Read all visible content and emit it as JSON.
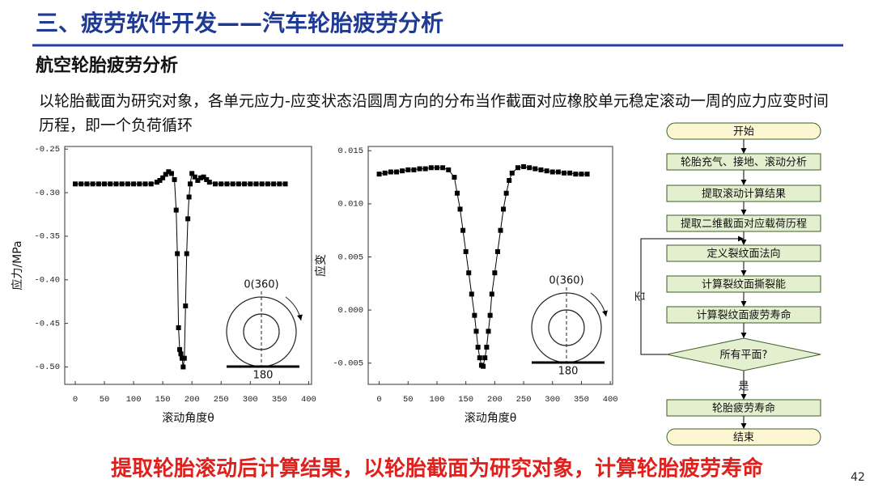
{
  "header": {
    "title": "三、疲劳软件开发——汽车轮胎疲劳分析",
    "subtitle": "航空轮胎疲劳分析",
    "description": "以轮胎截面为研究对象，各单元应力-应变状态沿圆周方向的分布当作截面对应橡胶单元稳定滚动一周的应力应变时间历程，即一个负荷循环"
  },
  "chart_data": [
    {
      "type": "line",
      "marker": "square",
      "color": "#000000",
      "xlabel": "滚动角度θ",
      "ylabel": "应力/MPa",
      "annotations": [
        "0(360)",
        "180"
      ],
      "x": [
        0,
        10,
        20,
        30,
        40,
        50,
        60,
        70,
        80,
        90,
        100,
        110,
        120,
        130,
        140,
        145,
        150,
        155,
        160,
        165,
        170,
        173,
        175,
        177,
        179,
        181,
        183,
        185,
        187,
        189,
        191,
        193,
        195,
        197,
        200,
        205,
        210,
        215,
        220,
        225,
        230,
        240,
        250,
        260,
        270,
        280,
        290,
        300,
        310,
        320,
        330,
        340,
        350,
        360
      ],
      "values": [
        -0.29,
        -0.29,
        -0.29,
        -0.29,
        -0.29,
        -0.29,
        -0.29,
        -0.29,
        -0.29,
        -0.29,
        -0.29,
        -0.29,
        -0.29,
        -0.29,
        -0.288,
        -0.286,
        -0.283,
        -0.279,
        -0.276,
        -0.278,
        -0.285,
        -0.32,
        -0.37,
        -0.455,
        -0.48,
        -0.485,
        -0.49,
        -0.5,
        -0.49,
        -0.43,
        -0.37,
        -0.33,
        -0.305,
        -0.29,
        -0.278,
        -0.282,
        -0.286,
        -0.283,
        -0.282,
        -0.285,
        -0.288,
        -0.29,
        -0.29,
        -0.29,
        -0.29,
        -0.29,
        -0.29,
        -0.29,
        -0.29,
        -0.29,
        -0.29,
        -0.29,
        -0.29,
        -0.29
      ],
      "xlim": [
        -18,
        405
      ],
      "xticks": [
        0,
        50,
        100,
        150,
        200,
        250,
        300,
        350,
        400
      ],
      "ylim": [
        -0.52,
        -0.247
      ],
      "yticks": [
        -0.25,
        {
          "value": -0.3,
          "label": "-0.30"
        },
        -0.35,
        {
          "value": -0.4,
          "label": "-0.40"
        },
        -0.45,
        {
          "value": -0.5,
          "label": "-0.50"
        }
      ]
    },
    {
      "type": "line",
      "marker": "square",
      "color": "#000000",
      "xlabel": "滚动角度θ",
      "ylabel": "应变",
      "annotations": [
        "0(360)",
        "180"
      ],
      "x": [
        0,
        10,
        20,
        30,
        40,
        50,
        60,
        70,
        80,
        90,
        100,
        110,
        120,
        130,
        135,
        140,
        145,
        150,
        155,
        160,
        165,
        168,
        171,
        174,
        177,
        180,
        183,
        186,
        189,
        192,
        195,
        200,
        205,
        210,
        215,
        220,
        225,
        230,
        240,
        250,
        260,
        270,
        280,
        290,
        300,
        310,
        320,
        330,
        340,
        350,
        360
      ],
      "values": [
        0.0128,
        0.0129,
        0.013,
        0.013,
        0.0131,
        0.0132,
        0.0132,
        0.0133,
        0.0133,
        0.0134,
        0.0134,
        0.0134,
        0.0132,
        0.0125,
        0.011,
        0.0095,
        0.0075,
        0.0055,
        0.0035,
        0.0015,
        -0.0005,
        -0.002,
        -0.0035,
        -0.0045,
        -0.0052,
        -0.0053,
        -0.0045,
        -0.0035,
        -0.002,
        -0.0005,
        0.0015,
        0.0035,
        0.0055,
        0.0075,
        0.0095,
        0.011,
        0.0122,
        0.0129,
        0.0134,
        0.0135,
        0.0134,
        0.0133,
        0.0132,
        0.0131,
        0.013,
        0.013,
        0.0129,
        0.0129,
        0.0128,
        0.0128,
        0.0128
      ],
      "xlim": [
        -19,
        404
      ],
      "xticks": [
        0,
        50,
        100,
        150,
        200,
        250,
        300,
        350,
        400
      ],
      "ylim": [
        -0.007,
        0.0154
      ],
      "yticks": [
        0.015,
        {
          "value": 0.01,
          "label": "0.010"
        },
        0.005,
        {
          "value": 0,
          "label": "0.000"
        },
        -0.005
      ]
    }
  ],
  "flowchart": {
    "nodes": [
      "开始",
      "轮胎充气、接地、滚动分析",
      "提取滚动计算结果",
      "提取二维截面对应载荷历程",
      "定义裂纹面法向",
      "计算裂纹面撕裂能",
      "计算裂纹面疲劳寿命",
      "所有平面?",
      "轮胎疲劳寿命",
      "结束"
    ],
    "edge_labels": [
      "否",
      "是"
    ]
  },
  "conclusion": "提取轮胎滚动后计算结果，以轮胎截面为研究对象，计算轮胎疲劳寿命",
  "page_number": "42"
}
